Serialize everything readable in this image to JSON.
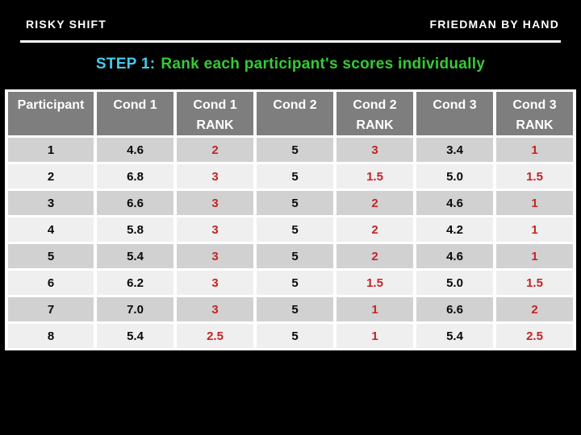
{
  "header": {
    "left": "RISKY SHIFT",
    "right": "FRIEDMAN BY HAND"
  },
  "title": {
    "step": "STEP 1:",
    "text": "Rank each participant's scores individually"
  },
  "table": {
    "columns": [
      "Participant",
      "Cond 1",
      "Cond 1\nRANK",
      "Cond 2",
      "Cond 2\nRANK",
      "Cond 3",
      "Cond 3\nRANK"
    ],
    "rows": [
      [
        "1",
        "4.6",
        "2",
        "5",
        "3",
        "3.4",
        "1"
      ],
      [
        "2",
        "6.8",
        "3",
        "5",
        "1.5",
        "5.0",
        "1.5"
      ],
      [
        "3",
        "6.6",
        "3",
        "5",
        "2",
        "4.6",
        "1"
      ],
      [
        "4",
        "5.8",
        "3",
        "5",
        "2",
        "4.2",
        "1"
      ],
      [
        "5",
        "5.4",
        "3",
        "5",
        "2",
        "4.6",
        "1"
      ],
      [
        "6",
        "6.2",
        "3",
        "5",
        "1.5",
        "5.0",
        "1.5"
      ],
      [
        "7",
        "7.0",
        "3",
        "5",
        "1",
        "6.6",
        "2"
      ],
      [
        "8",
        "5.4",
        "2.5",
        "5",
        "1",
        "5.4",
        "2.5"
      ]
    ]
  },
  "colors": {
    "background": "#000000",
    "header_text": "#FFFFFF",
    "divider": "#FFFFFF",
    "step_label": "#44CCEE",
    "step_text": "#33CC33",
    "table_header_bg": "#7E7E7E",
    "table_header_text": "#FFFFFF",
    "row_odd_bg": "#D1D1D1",
    "row_even_bg": "#EFEFEF",
    "grid_lines": "#FFFFFF",
    "value_text": "#0A0A0A",
    "rank_text": "#C42424"
  }
}
